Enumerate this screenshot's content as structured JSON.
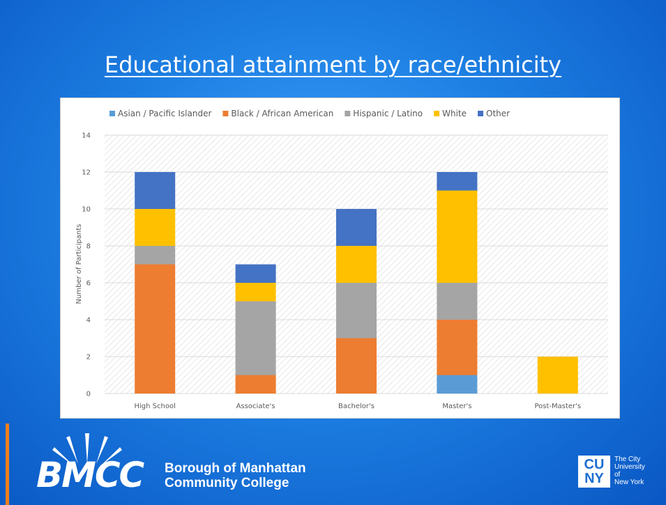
{
  "slide": {
    "title": "Educational attainment by race/ethnicity"
  },
  "footer": {
    "bmcc_wordmark": "BMCC",
    "bmcc_name_line1": "Borough of Manhattan",
    "bmcc_name_line2": "Community College",
    "cuny_mark": "CU NY",
    "cuny_text": "The City\nUniversity\nof\nNew York"
  },
  "chart_data": {
    "type": "bar",
    "stacked": true,
    "title": "",
    "xlabel": "",
    "ylabel": "Number of Participants",
    "ylim": [
      0,
      14
    ],
    "yticks": [
      0,
      2,
      4,
      6,
      8,
      10,
      12,
      14
    ],
    "legend_position": "top",
    "categories": [
      "High School",
      "Associate's",
      "Bachelor's",
      "Master's",
      "Post-Master's"
    ],
    "series": [
      {
        "name": "Asian / Pacific Islander",
        "color": "#5b9bd5",
        "values": [
          0,
          0,
          0,
          1,
          0
        ]
      },
      {
        "name": "Black / African American",
        "color": "#ed7d31",
        "values": [
          7,
          1,
          3,
          3,
          0
        ]
      },
      {
        "name": "Hispanic / Latino",
        "color": "#a5a5a5",
        "values": [
          1,
          4,
          3,
          2,
          0
        ]
      },
      {
        "name": "White",
        "color": "#ffc000",
        "values": [
          2,
          1,
          2,
          5,
          2
        ]
      },
      {
        "name": "Other",
        "color": "#4472c4",
        "values": [
          2,
          1,
          2,
          1,
          0
        ]
      }
    ]
  }
}
